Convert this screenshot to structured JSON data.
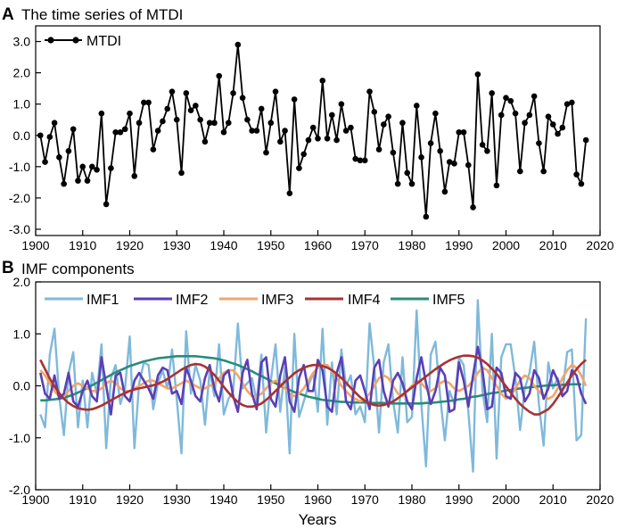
{
  "colors": {
    "mtdi": "#000000",
    "imf1": "#7FB9DA",
    "imf2": "#5A3FB5",
    "imf3": "#F4A46A",
    "imf4": "#A83232",
    "imf5": "#2A8C7A"
  },
  "chart_data": [
    {
      "type": "line",
      "panel_letter": "A",
      "title": "The time series of MTDI",
      "xlabel": "",
      "ylabel": "",
      "xlim": [
        1900,
        2020
      ],
      "ylim": [
        -3.2,
        3.5
      ],
      "xticks": [
        1900,
        1910,
        1920,
        1930,
        1940,
        1950,
        1960,
        1970,
        1980,
        1990,
        2000,
        2010,
        2020
      ],
      "xtick_labels": [
        "1900",
        "1910",
        "1920",
        "1930",
        "1940",
        "1950",
        "1960",
        "1970",
        "1980",
        "1990",
        "2000",
        "2010",
        "2020"
      ],
      "yticks": [
        -3,
        -2,
        -1,
        0,
        1,
        2,
        3
      ],
      "ytick_labels": [
        "-3.0",
        "-2.0",
        "-1.0",
        "0.0",
        "1.0",
        "2.0",
        "3.0"
      ],
      "legend": "top-left",
      "series": [
        {
          "name": "MTDI",
          "color": "#000000",
          "markers": true,
          "start_year": 1901,
          "values": [
            0.0,
            -0.85,
            -0.05,
            0.4,
            -0.7,
            -1.55,
            -0.5,
            0.2,
            -1.45,
            -1.0,
            -1.45,
            -1.0,
            -1.1,
            0.7,
            -2.2,
            -1.05,
            0.1,
            0.1,
            0.2,
            0.7,
            -1.3,
            0.4,
            1.05,
            1.05,
            -0.45,
            0.15,
            0.45,
            0.85,
            1.4,
            0.5,
            -1.2,
            1.35,
            0.8,
            0.95,
            0.5,
            -0.2,
            0.4,
            0.4,
            1.9,
            0.1,
            0.4,
            1.35,
            2.9,
            1.2,
            0.5,
            0.15,
            0.15,
            0.85,
            -0.55,
            0.4,
            1.4,
            -0.2,
            0.15,
            -1.85,
            1.15,
            -1.05,
            -0.6,
            -0.15,
            0.25,
            -0.1,
            1.75,
            -0.1,
            0.65,
            -0.15,
            1.0,
            0.15,
            0.25,
            -0.75,
            -0.8,
            -0.8,
            1.4,
            0.75,
            -0.45,
            0.35,
            0.6,
            -0.55,
            -1.55,
            0.4,
            -1.2,
            -1.55,
            0.95,
            -0.7,
            -2.6,
            -0.25,
            0.7,
            -0.5,
            -1.8,
            -0.85,
            -0.9,
            0.1,
            0.1,
            -0.95,
            -2.3,
            1.95,
            -0.3,
            -0.5,
            1.35,
            -1.6,
            0.65,
            1.2,
            1.1,
            0.7,
            -1.15,
            0.4,
            0.65,
            1.25,
            -0.25,
            -1.15,
            0.6,
            0.35,
            0.05,
            0.25,
            1.0,
            1.05,
            -1.25,
            -1.55,
            -0.15
          ]
        }
      ]
    },
    {
      "type": "line",
      "panel_letter": "B",
      "title": "IMF components",
      "xlabel": "Years",
      "ylabel": "",
      "xlim": [
        1900,
        2020
      ],
      "ylim": [
        -2.0,
        2.0
      ],
      "xticks": [
        1900,
        1910,
        1920,
        1930,
        1940,
        1950,
        1960,
        1970,
        1980,
        1990,
        2000,
        2010,
        2020
      ],
      "xtick_labels": [
        "1900",
        "1910",
        "1920",
        "1930",
        "1940",
        "1950",
        "1960",
        "1970",
        "1980",
        "1990",
        "2000",
        "2010",
        "2020"
      ],
      "yticks": [
        -2,
        -1,
        0,
        1,
        2
      ],
      "ytick_labels": [
        "-2.0",
        "-1.0",
        "0.0",
        "1.0",
        "2.0"
      ],
      "legend": "top",
      "series": [
        {
          "name": "IMF1",
          "color": "#7FB9DA",
          "start_year": 1901,
          "values": [
            -0.55,
            -0.8,
            0.6,
            1.1,
            -0.2,
            -0.95,
            0.25,
            0.65,
            -0.8,
            0.1,
            -0.8,
            0.25,
            -0.15,
            0.8,
            -1.2,
            0.15,
            0.4,
            -0.35,
            -0.05,
            0.95,
            -1.2,
            0.05,
            0.45,
            0.4,
            -0.45,
            0.05,
            0.3,
            -0.05,
            0.7,
            -0.25,
            -1.3,
            1.05,
            -0.15,
            0.4,
            0.1,
            -0.75,
            0.3,
            -0.2,
            0.8,
            -0.55,
            -0.25,
            -0.1,
            1.2,
            -0.05,
            0.05,
            0.15,
            -0.3,
            0.6,
            -0.9,
            0.1,
            0.8,
            -0.5,
            0.35,
            -1.3,
            1.0,
            -0.6,
            -0.3,
            0.0,
            0.25,
            -0.5,
            1.1,
            -0.75,
            0.45,
            -0.55,
            0.7,
            0.0,
            0.2,
            -0.55,
            -0.4,
            -0.7,
            1.2,
            0.35,
            -0.9,
            0.45,
            0.8,
            -0.3,
            -0.9,
            0.55,
            -0.7,
            -0.6,
            1.45,
            -0.35,
            -1.55,
            0.6,
            0.85,
            -0.2,
            -1.05,
            -0.1,
            -0.35,
            0.55,
            0.4,
            -0.5,
            -1.65,
            1.65,
            -0.1,
            -0.7,
            1.0,
            -1.4,
            0.55,
            0.8,
            0.8,
            0.15,
            -0.85,
            -0.05,
            0.25,
            0.85,
            -0.35,
            -1.15,
            0.45,
            -0.05,
            0.15,
            -0.15,
            0.65,
            0.7,
            -1.05,
            -0.95,
            1.3
          ]
        },
        {
          "name": "IMF2",
          "color": "#5A3FB5",
          "start_year": 1901,
          "values": [
            0.25,
            -0.15,
            -0.25,
            0.2,
            -0.25,
            -0.15,
            0.25,
            -0.3,
            -0.4,
            -0.1,
            0.1,
            -0.2,
            -0.3,
            0.55,
            0.0,
            -0.55,
            0.2,
            0.25,
            -0.2,
            -0.3,
            0.1,
            0.25,
            0.1,
            -0.05,
            -0.25,
            0.2,
            0.35,
            0.3,
            -0.15,
            -0.1,
            -0.35,
            0.35,
            0.1,
            -0.2,
            -0.3,
            0.15,
            0.4,
            -0.05,
            -0.3,
            0.2,
            0.3,
            -0.2,
            -0.5,
            0.25,
            0.5,
            -0.15,
            -0.45,
            0.45,
            0.55,
            -0.25,
            -0.4,
            0.2,
            0.55,
            -0.3,
            -0.5,
            0.15,
            0.4,
            -0.1,
            -0.1,
            0.5,
            0.3,
            -0.4,
            -0.5,
            0.25,
            0.55,
            -0.3,
            -0.45,
            0.1,
            0.2,
            -0.1,
            -0.45,
            0.35,
            0.5,
            -0.1,
            -0.4,
            0.1,
            0.25,
            0.05,
            -0.3,
            -0.45,
            0.15,
            0.55,
            0.05,
            -0.35,
            -0.1,
            0.35,
            0.2,
            -0.5,
            -0.45,
            0.45,
            0.1,
            -0.4,
            0.2,
            0.75,
            0.3,
            -0.45,
            -0.4,
            0.35,
            0.25,
            -0.2,
            -0.25,
            0.25,
            0.15,
            -0.3,
            -0.15,
            0.3,
            0.15,
            -0.25,
            -0.05,
            0.3,
            0.1,
            -0.2,
            -0.1,
            0.3,
            0.2,
            -0.15,
            -0.35
          ]
        },
        {
          "name": "IMF3",
          "color": "#F4A46A",
          "start_year": 1901,
          "values": [
            0.3,
            0.2,
            0.05,
            -0.1,
            -0.2,
            -0.2,
            -0.1,
            0.0,
            0.05,
            0.0,
            -0.05,
            -0.1,
            -0.1,
            -0.05,
            0.05,
            0.1,
            0.05,
            -0.05,
            -0.1,
            -0.1,
            -0.05,
            0.0,
            0.05,
            0.1,
            0.1,
            0.05,
            0.0,
            -0.05,
            -0.05,
            0.0,
            0.05,
            0.1,
            0.05,
            0.0,
            -0.05,
            -0.05,
            0.0,
            0.05,
            0.15,
            0.25,
            0.3,
            0.3,
            0.2,
            0.05,
            -0.1,
            -0.2,
            -0.2,
            -0.15,
            -0.05,
            0.05,
            0.1,
            0.05,
            -0.05,
            -0.15,
            -0.2,
            -0.15,
            -0.05,
            0.1,
            0.25,
            0.35,
            0.4,
            0.4,
            0.3,
            0.15,
            0.0,
            -0.1,
            -0.2,
            -0.25,
            -0.3,
            -0.25,
            -0.15,
            0.0,
            0.15,
            0.2,
            0.15,
            0.0,
            -0.15,
            -0.2,
            -0.1,
            0.0,
            0.1,
            0.05,
            -0.05,
            -0.1,
            -0.05,
            0.05,
            0.1,
            0.05,
            -0.05,
            -0.1,
            -0.05,
            0.0,
            0.1,
            0.25,
            0.35,
            0.3,
            0.15,
            0.0,
            -0.15,
            -0.25,
            -0.2,
            -0.05,
            0.1,
            0.2,
            0.15,
            0.0,
            -0.1,
            -0.2,
            -0.25,
            -0.2,
            -0.05,
            0.15,
            0.3,
            0.4,
            0.35,
            0.2,
            0.0
          ]
        },
        {
          "name": "IMF4",
          "color": "#A83232",
          "start_year": 1901,
          "values": [
            0.5,
            0.32,
            0.14,
            -0.01,
            -0.14,
            -0.25,
            -0.33,
            -0.39,
            -0.43,
            -0.45,
            -0.46,
            -0.45,
            -0.42,
            -0.38,
            -0.33,
            -0.28,
            -0.23,
            -0.18,
            -0.14,
            -0.1,
            -0.07,
            -0.05,
            -0.03,
            -0.01,
            0.01,
            0.04,
            0.08,
            0.13,
            0.19,
            0.25,
            0.31,
            0.36,
            0.4,
            0.42,
            0.41,
            0.37,
            0.3,
            0.21,
            0.1,
            -0.02,
            -0.13,
            -0.23,
            -0.31,
            -0.37,
            -0.4,
            -0.4,
            -0.38,
            -0.34,
            -0.27,
            -0.19,
            -0.1,
            -0.01,
            0.08,
            0.16,
            0.24,
            0.3,
            0.35,
            0.38,
            0.4,
            0.4,
            0.38,
            0.35,
            0.3,
            0.23,
            0.15,
            0.06,
            -0.04,
            -0.13,
            -0.22,
            -0.29,
            -0.34,
            -0.37,
            -0.38,
            -0.37,
            -0.34,
            -0.3,
            -0.24,
            -0.17,
            -0.1,
            -0.03,
            0.04,
            0.11,
            0.18,
            0.25,
            0.32,
            0.38,
            0.44,
            0.49,
            0.53,
            0.56,
            0.58,
            0.58,
            0.57,
            0.54,
            0.49,
            0.42,
            0.33,
            0.23,
            0.11,
            -0.01,
            -0.13,
            -0.25,
            -0.35,
            -0.43,
            -0.5,
            -0.55,
            -0.55,
            -0.5,
            -0.45,
            -0.35,
            -0.22,
            -0.08,
            0.06,
            0.2,
            0.32,
            0.42,
            0.5
          ]
        },
        {
          "name": "IMF5",
          "color": "#2A8C7A",
          "start_year": 1901,
          "values": [
            -0.28,
            -0.28,
            -0.27,
            -0.26,
            -0.25,
            -0.23,
            -0.2,
            -0.17,
            -0.13,
            -0.09,
            -0.04,
            0.01,
            0.06,
            0.11,
            0.16,
            0.21,
            0.26,
            0.3,
            0.34,
            0.38,
            0.41,
            0.44,
            0.47,
            0.49,
            0.51,
            0.53,
            0.54,
            0.55,
            0.56,
            0.57,
            0.57,
            0.57,
            0.57,
            0.57,
            0.56,
            0.55,
            0.54,
            0.53,
            0.51,
            0.49,
            0.46,
            0.43,
            0.4,
            0.36,
            0.32,
            0.28,
            0.23,
            0.19,
            0.14,
            0.09,
            0.05,
            0.0,
            -0.04,
            -0.08,
            -0.12,
            -0.15,
            -0.18,
            -0.21,
            -0.23,
            -0.25,
            -0.27,
            -0.28,
            -0.29,
            -0.3,
            -0.31,
            -0.31,
            -0.32,
            -0.32,
            -0.32,
            -0.32,
            -0.33,
            -0.33,
            -0.33,
            -0.33,
            -0.34,
            -0.34,
            -0.34,
            -0.34,
            -0.34,
            -0.34,
            -0.34,
            -0.34,
            -0.33,
            -0.33,
            -0.32,
            -0.31,
            -0.3,
            -0.29,
            -0.28,
            -0.26,
            -0.25,
            -0.23,
            -0.21,
            -0.2,
            -0.18,
            -0.16,
            -0.14,
            -0.13,
            -0.11,
            -0.09,
            -0.08,
            -0.06,
            -0.05,
            -0.04,
            -0.03,
            -0.02,
            -0.01,
            0.0,
            0.01,
            0.01,
            0.02,
            0.02,
            0.02,
            0.03,
            0.03,
            0.03
          ]
        }
      ]
    }
  ]
}
